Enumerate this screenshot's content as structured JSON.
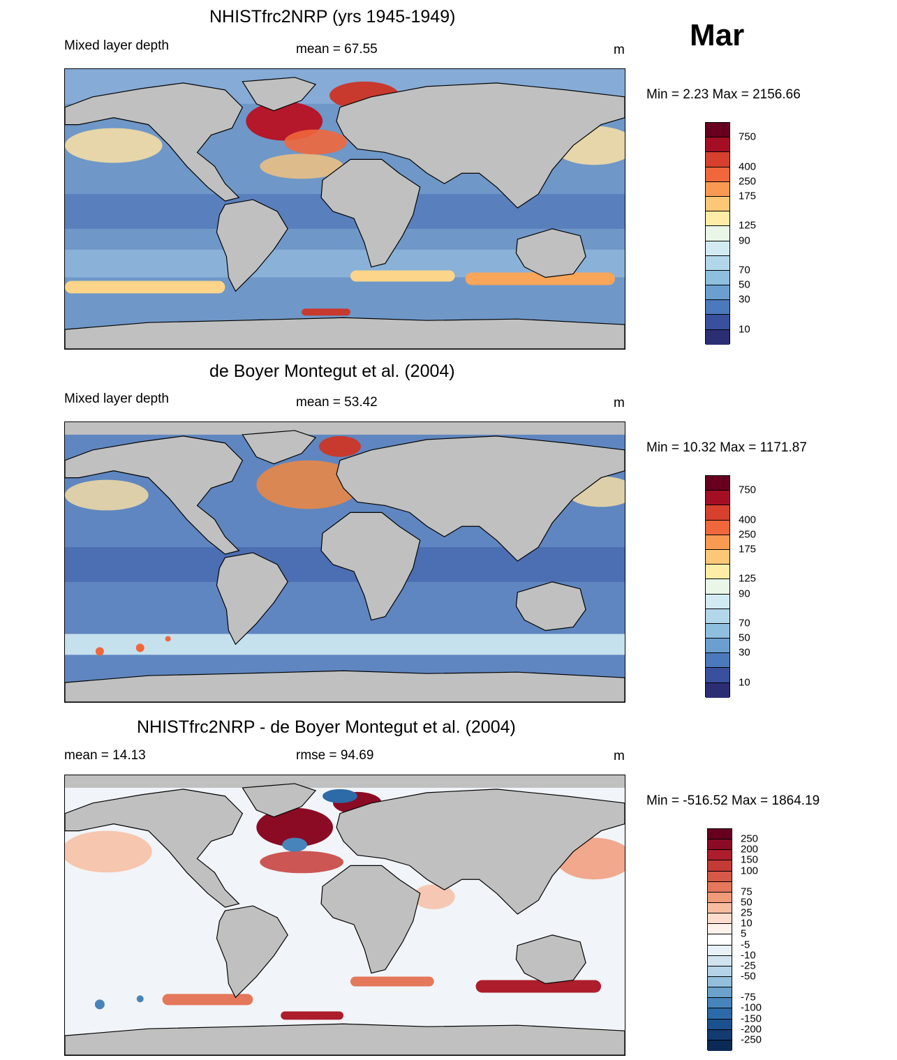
{
  "month": "Mar",
  "units": "m",
  "panels": [
    {
      "id": "model",
      "title": "NHISTfrc2NRP (yrs 1945-1949)",
      "left_label": "Mixed layer depth",
      "center_label": "mean =  67.55",
      "right_label": "m",
      "minmax": "Min =   2.23 Max = 2156.66",
      "colorbar_labels": [
        "750",
        "400",
        "250",
        "175",
        "125",
        "90",
        "70",
        "50",
        "30",
        "10"
      ],
      "colorbar_colors": [
        "#67001f",
        "#a50f24",
        "#d6402c",
        "#f0673c",
        "#f99a52",
        "#fcc777",
        "#fdeda6",
        "#e9f6e8",
        "#d2ebf3",
        "#b3d7ea",
        "#8fbfde",
        "#6a9fcf",
        "#4b79bb",
        "#39509f",
        "#2c2e74"
      ]
    },
    {
      "id": "obs",
      "title": "de Boyer Montegut et al. (2004)",
      "left_label": "Mixed layer depth",
      "center_label": "mean =  53.42",
      "right_label": "m",
      "minmax": "Min =  10.32 Max = 1171.87",
      "colorbar_labels": [
        "750",
        "400",
        "250",
        "175",
        "125",
        "90",
        "70",
        "50",
        "30",
        "10"
      ],
      "colorbar_colors": [
        "#67001f",
        "#a50f24",
        "#d6402c",
        "#f0673c",
        "#f99a52",
        "#fcc777",
        "#fdeda6",
        "#e9f6e8",
        "#d2ebf3",
        "#b3d7ea",
        "#8fbfde",
        "#6a9fcf",
        "#4b79bb",
        "#39509f",
        "#2c2e74"
      ]
    },
    {
      "id": "diff",
      "title": "NHISTfrc2NRP - de Boyer Montegut et al. (2004)",
      "left_label": "mean =  14.13",
      "center_label": "rmse =  94.69",
      "right_label": "m",
      "minmax": "Min = -516.52 Max = 1864.19",
      "colorbar_labels": [
        "250",
        "200",
        "150",
        "100",
        "75",
        "50",
        "25",
        "10",
        "5",
        "-5",
        "-10",
        "-25",
        "-50",
        "-75",
        "-100",
        "-150",
        "-200",
        "-250"
      ],
      "colorbar_colors": [
        "#67001f",
        "#8b0b24",
        "#ad1d2b",
        "#c53a36",
        "#d65846",
        "#e5775b",
        "#f19a7a",
        "#f8bda1",
        "#fbdccd",
        "#fdf1ec",
        "#ffffff",
        "#e8f1f7",
        "#d0e3ef",
        "#b5d3e8",
        "#93bedc",
        "#6aa2cc",
        "#4784bb",
        "#2c6aa8",
        "#1c5190",
        "#123b72",
        "#0b2a55"
      ]
    }
  ],
  "colors": {
    "land": "#c0c0c0",
    "ocean_base_model": "#6f97c8",
    "ocean_base_obs": "#5f86c0",
    "ocean_base_diff": "#f1f4f8"
  }
}
